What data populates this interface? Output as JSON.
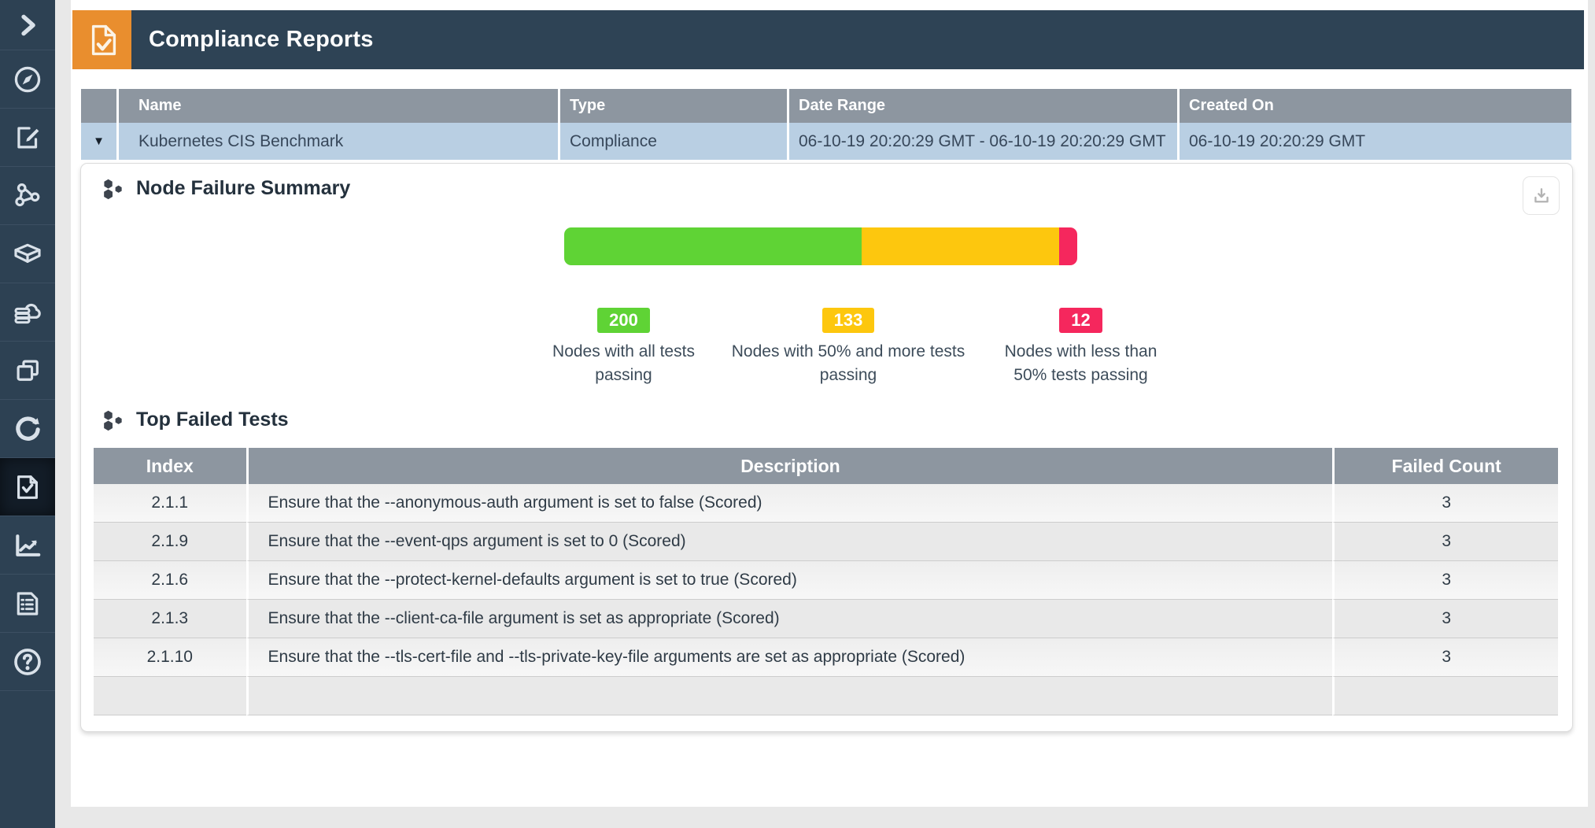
{
  "header": {
    "title": "Compliance Reports",
    "icon": "document-check-icon",
    "accent_color": "#e98e2e",
    "bar_color": "#2e4355"
  },
  "sidebar": {
    "background": "#2d4153",
    "active_index": 8,
    "items": [
      {
        "name": "expand",
        "icon": "chevron-right-icon"
      },
      {
        "name": "dashboard",
        "icon": "compass-icon"
      },
      {
        "name": "policies",
        "icon": "edit-document-icon"
      },
      {
        "name": "topology",
        "icon": "share-nodes-icon"
      },
      {
        "name": "containers",
        "icon": "cube-icon"
      },
      {
        "name": "registries",
        "icon": "cloud-storage-icon"
      },
      {
        "name": "images",
        "icon": "layers-icon"
      },
      {
        "name": "runtime",
        "icon": "refresh-icon"
      },
      {
        "name": "compliance",
        "icon": "document-check-icon"
      },
      {
        "name": "analytics",
        "icon": "line-chart-icon"
      },
      {
        "name": "logs",
        "icon": "report-list-icon"
      },
      {
        "name": "help",
        "icon": "question-circle-icon"
      }
    ]
  },
  "reports_table": {
    "expander_glyph": "▼",
    "columns": [
      "Name",
      "Type",
      "Date Range",
      "Created On"
    ],
    "header_color": "#8d96a0",
    "row_color": "#b9cfe3",
    "rows": [
      {
        "name": "Kubernetes CIS Benchmark",
        "type": "Compliance",
        "date_range": "06-10-19 20:20:29 GMT - 06-10-19 20:20:29 GMT",
        "created_on": "06-10-19 20:20:29 GMT",
        "expanded": true
      }
    ]
  },
  "node_failure_summary": {
    "title": "Node Failure Summary",
    "chart_data": {
      "type": "bar",
      "subtype": "stacked-horizontal",
      "total": 345,
      "segments": [
        {
          "label": "Nodes with all tests passing",
          "value": 200,
          "color": "#5fd335"
        },
        {
          "label": "Nodes with 50% and more tests passing",
          "value": 133,
          "color": "#fdc70e"
        },
        {
          "label": "Nodes with less than 50% tests passing",
          "value": 12,
          "color": "#f5275d"
        }
      ]
    }
  },
  "top_failed_tests": {
    "title": "Top Failed Tests",
    "columns": [
      "Index",
      "Description",
      "Failed Count"
    ],
    "rows": [
      {
        "index": "2.1.1",
        "description": "Ensure that the --anonymous-auth argument is set to false (Scored)",
        "failed_count": "3"
      },
      {
        "index": "2.1.9",
        "description": "Ensure that the --event-qps argument is set to 0 (Scored)",
        "failed_count": "3"
      },
      {
        "index": "2.1.6",
        "description": "Ensure that the --protect-kernel-defaults argument is set to true (Scored)",
        "failed_count": "3"
      },
      {
        "index": "2.1.3",
        "description": "Ensure that the --client-ca-file argument is set as appropriate (Scored)",
        "failed_count": "3"
      },
      {
        "index": "2.1.10",
        "description": "Ensure that the --tls-cert-file and --tls-private-key-file arguments are set as appropriate (Scored)",
        "failed_count": "3"
      }
    ]
  }
}
